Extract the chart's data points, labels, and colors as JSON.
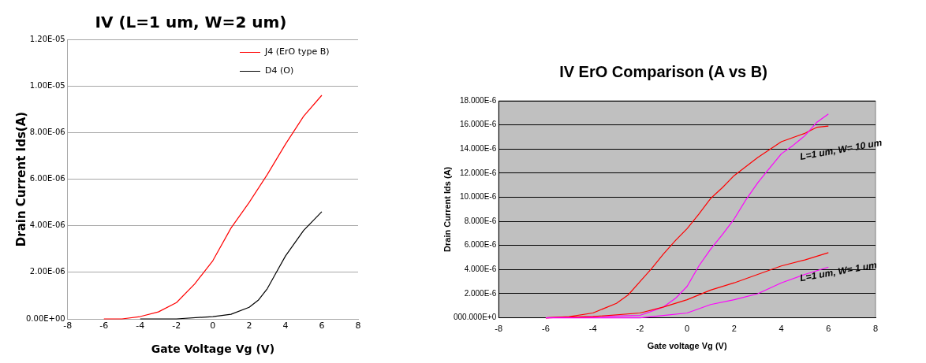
{
  "chart_data": [
    {
      "type": "line",
      "title": "IV (L=1 um, W=2 um)",
      "xlabel": "Gate Voltage Vg (V)",
      "ylabel": "Drain Current Ids(A)",
      "xlim": [
        -8,
        8
      ],
      "xticks": [
        -8,
        -6,
        -4,
        -2,
        0,
        2,
        4,
        6,
        8
      ],
      "ylim": [
        0,
        1.2e-05
      ],
      "yticks": [
        {
          "value": 0,
          "label": "0.00E+00"
        },
        {
          "value": 2e-06,
          "label": "2.00E-06"
        },
        {
          "value": 4e-06,
          "label": "4.00E-06"
        },
        {
          "value": 6e-06,
          "label": "6.00E-06"
        },
        {
          "value": 8e-06,
          "label": "8.00E-06"
        },
        {
          "value": 1e-05,
          "label": "1.00E-05"
        },
        {
          "value": 1.2e-05,
          "label": "1.20E-05"
        }
      ],
      "grid": "y",
      "legend": "top right",
      "marker": "none",
      "series": [
        {
          "name": "J4 (ErO type B)",
          "color": "#ff0000",
          "x": [
            -6,
            -5,
            -4,
            -3,
            -2,
            -1,
            0,
            1,
            2,
            3,
            4,
            5,
            6
          ],
          "values": [
            0,
            0,
            1e-07,
            3e-07,
            7e-07,
            1.5e-06,
            2.5e-06,
            3.9e-06,
            5e-06,
            6.2e-06,
            7.5e-06,
            8.7e-06,
            9.6e-06
          ]
        },
        {
          "name": "D4 (O)",
          "color": "#000000",
          "x": [
            -4,
            -2,
            0,
            1,
            2,
            2.5,
            3,
            3.5,
            4,
            5,
            6
          ],
          "values": [
            0,
            0,
            1e-07,
            2e-07,
            5e-07,
            8e-07,
            1.3e-06,
            2e-06,
            2.7e-06,
            3.8e-06,
            4.6e-06
          ]
        }
      ]
    },
    {
      "type": "line",
      "title": "IV ErO Comparison (A vs B)",
      "xlabel": "Gate voltage Vg (V)",
      "ylabel": "Drain Current Ids (A)",
      "xlim": [
        -8,
        8
      ],
      "xticks": [
        -8,
        -6,
        -4,
        -2,
        0,
        2,
        4,
        6,
        8
      ],
      "ylim": [
        0,
        1.8e-05
      ],
      "yticks": [
        {
          "value": 0,
          "label": "000.000E+0"
        },
        {
          "value": 2e-06,
          "label": "2.000E-6"
        },
        {
          "value": 4e-06,
          "label": "4.000E-6"
        },
        {
          "value": 6e-06,
          "label": "6.000E-6"
        },
        {
          "value": 8e-06,
          "label": "8.000E-6"
        },
        {
          "value": 1e-05,
          "label": "10.000E-6"
        },
        {
          "value": 1.2e-05,
          "label": "12.000E-6"
        },
        {
          "value": 1.4e-05,
          "label": "14.000E-6"
        },
        {
          "value": 1.6e-05,
          "label": "16.000E-6"
        },
        {
          "value": 1.8e-05,
          "label": "18.000E-6"
        }
      ],
      "grid": "y",
      "marker": "none",
      "annotations": [
        "L=1 um, W= 10 um",
        "L=1 um, W= 1 um"
      ],
      "series": [
        {
          "color": "#ff0000",
          "x": [
            -6,
            -5,
            -4,
            -3,
            -2.5,
            -2,
            -1.5,
            -1,
            -0.5,
            0,
            0.5,
            1,
            1.5,
            2,
            3,
            4,
            5,
            5.5,
            6
          ],
          "values": [
            0,
            1e-07,
            4e-07,
            1.2e-06,
            1.9e-06,
            3e-06,
            4.1e-06,
            5.3e-06,
            6.4e-06,
            7.4e-06,
            8.6e-06,
            9.9e-06,
            1.08e-05,
            1.18e-05,
            1.33e-05,
            1.46e-05,
            1.53e-05,
            1.58e-05,
            1.59e-05
          ]
        },
        {
          "color": "#ff00ff",
          "x": [
            -6,
            -2,
            -1,
            -0.5,
            0,
            0.5,
            1,
            1.5,
            2,
            2.5,
            3,
            3.5,
            4,
            4.5,
            5,
            5.5,
            6
          ],
          "values": [
            0,
            2e-07,
            9e-07,
            1.6e-06,
            2.6e-06,
            4.3e-06,
            5.7e-06,
            6.9e-06,
            8.2e-06,
            9.8e-06,
            1.12e-05,
            1.24e-05,
            1.36e-05,
            1.43e-05,
            1.51e-05,
            1.62e-05,
            1.69e-05
          ]
        },
        {
          "color": "#ff0000",
          "x": [
            -6,
            -4,
            -2,
            -1,
            0,
            1,
            2,
            3,
            4,
            5,
            6
          ],
          "values": [
            0,
            1e-07,
            4e-07,
            9e-07,
            1.5e-06,
            2.3e-06,
            2.9e-06,
            3.6e-06,
            4.3e-06,
            4.8e-06,
            5.4e-06
          ]
        },
        {
          "color": "#ff00ff",
          "x": [
            -6,
            -2,
            -1,
            0,
            1,
            2,
            3,
            4,
            5,
            6
          ],
          "values": [
            0,
            0,
            2e-07,
            4e-07,
            1.1e-06,
            1.5e-06,
            2e-06,
            2.9e-06,
            3.6e-06,
            4.2e-06
          ]
        }
      ]
    }
  ]
}
